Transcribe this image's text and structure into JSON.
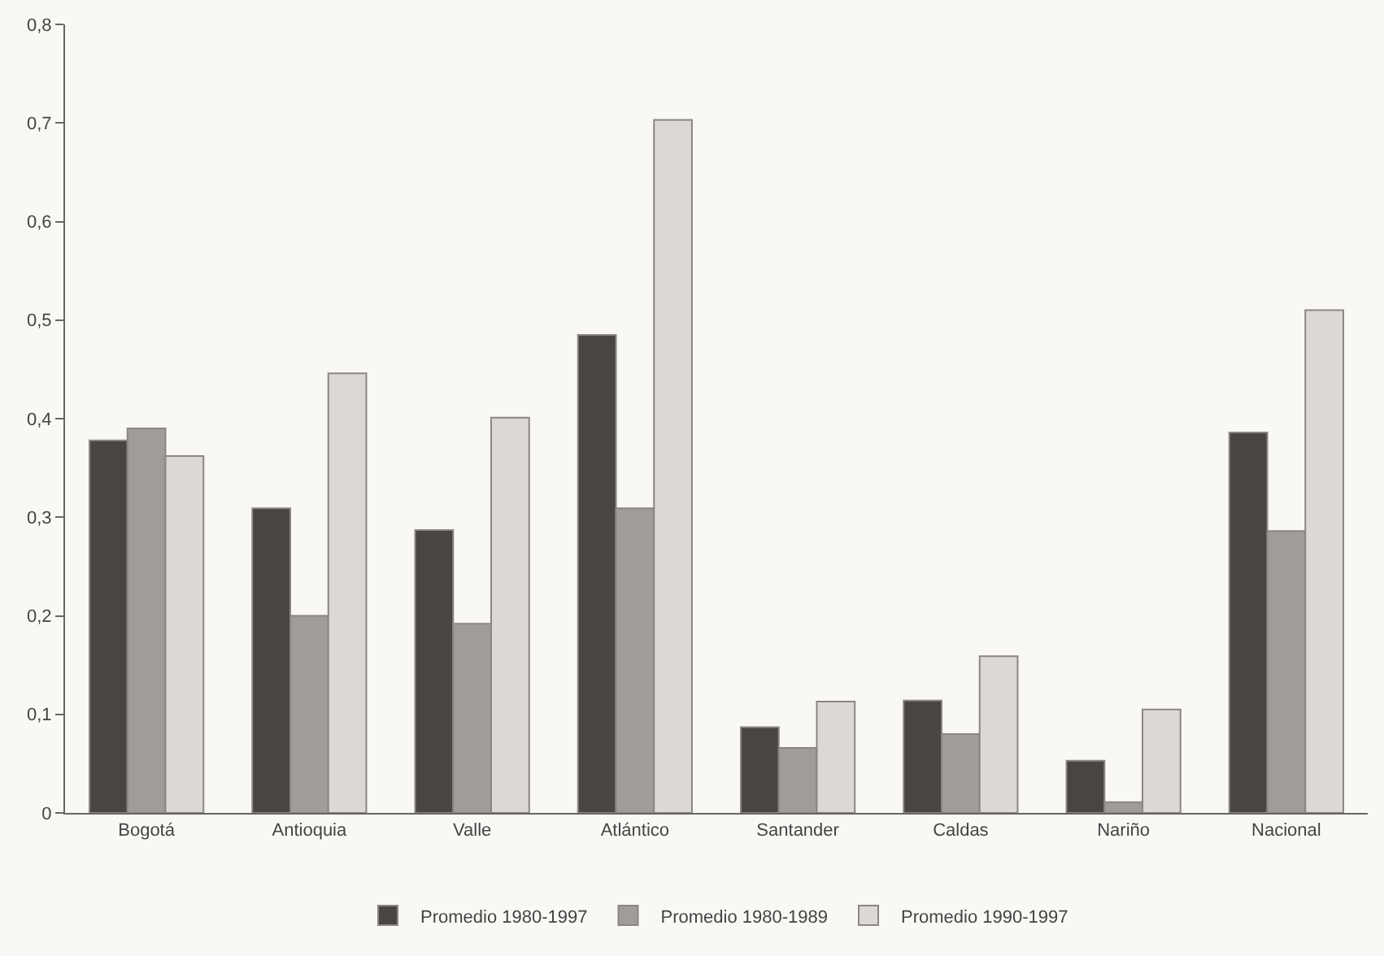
{
  "chart_data": {
    "type": "bar",
    "categories": [
      "Bogotá",
      "Antioquia",
      "Valle",
      "Atlántico",
      "Santander",
      "Caldas",
      "Nariño",
      "Nacional"
    ],
    "series": [
      {
        "name": "Promedio 1980-1997",
        "color": "#4a4543",
        "values": [
          0.378,
          0.309,
          0.287,
          0.485,
          0.087,
          0.114,
          0.053,
          0.386
        ]
      },
      {
        "name": "Promedio 1980-1989",
        "color": "#a09c98",
        "values": [
          0.39,
          0.2,
          0.192,
          0.309,
          0.066,
          0.08,
          0.011,
          0.286
        ]
      },
      {
        "name": "Promedio 1990-1997",
        "color": "#dcd9d4",
        "values": [
          0.362,
          0.446,
          0.401,
          0.703,
          0.113,
          0.159,
          0.105,
          0.51
        ]
      }
    ],
    "ylim": [
      0,
      0.8
    ],
    "yticks": [
      0,
      {
        "value": 0.1,
        "label": "0,1"
      },
      {
        "value": 0.2,
        "label": "0,2"
      },
      {
        "value": 0.3,
        "label": "0,3"
      },
      {
        "value": 0.4,
        "label": "0,4"
      },
      {
        "value": 0.5,
        "label": "0,5"
      },
      {
        "value": 0.6,
        "label": "0,6"
      },
      {
        "value": 0.7,
        "label": "0,7"
      },
      {
        "value": 0.8,
        "label": "0,8"
      }
    ],
    "grid": false,
    "legend": "bottom"
  }
}
